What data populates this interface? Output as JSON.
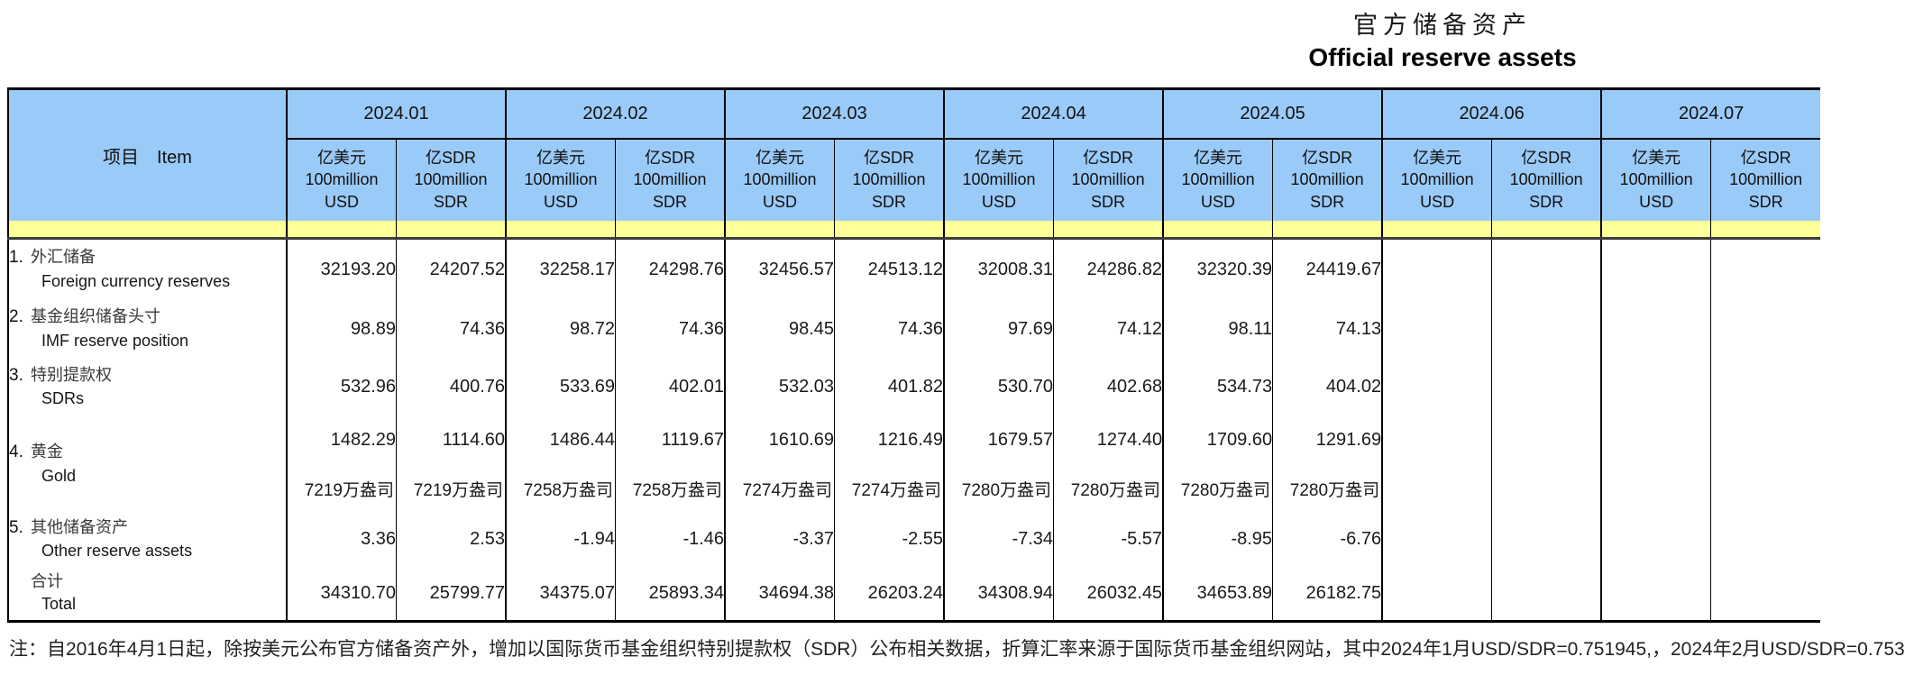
{
  "title": {
    "zh": "官方储备资产",
    "en": "Official reserve assets"
  },
  "table": {
    "item_header": "项目　Item",
    "months": [
      "2024.01",
      "2024.02",
      "2024.03",
      "2024.04",
      "2024.05",
      "2024.06",
      "2024.07"
    ],
    "unit_usd": {
      "zh": "亿美元",
      "l2": "100million",
      "l3": "USD"
    },
    "unit_sdr": {
      "zh": "亿SDR",
      "l2": "100million",
      "l3": "SDR"
    },
    "rows": [
      {
        "num": "1.",
        "zh": "外汇储备",
        "en": "Foreign currency reserves",
        "values": [
          "32193.20",
          "24207.52",
          "32258.17",
          "24298.76",
          "32456.57",
          "24513.12",
          "32008.31",
          "24286.82",
          "32320.39",
          "24419.67",
          "",
          "",
          "",
          ""
        ]
      },
      {
        "num": "2.",
        "zh": "基金组织储备头寸",
        "en": "IMF reserve position",
        "values": [
          "98.89",
          "74.36",
          "98.72",
          "74.36",
          "98.45",
          "74.36",
          "97.69",
          "74.12",
          "98.11",
          "74.13",
          "",
          "",
          "",
          ""
        ]
      },
      {
        "num": "3.",
        "zh": "特别提款权",
        "en": "SDRs",
        "values": [
          "532.96",
          "400.76",
          "533.69",
          "402.01",
          "532.03",
          "401.82",
          "530.70",
          "402.68",
          "534.73",
          "404.02",
          "",
          "",
          "",
          ""
        ]
      },
      {
        "num": "4.",
        "zh": "黄金",
        "en": "Gold",
        "values": [
          "1482.29",
          "1114.60",
          "1486.44",
          "1119.67",
          "1610.69",
          "1216.49",
          "1679.57",
          "1274.40",
          "1709.60",
          "1291.69",
          "",
          "",
          "",
          ""
        ]
      },
      {
        "num": "",
        "zh": "",
        "en": "",
        "values": [
          "7219万盎司",
          "7219万盎司",
          "7258万盎司",
          "7258万盎司",
          "7274万盎司",
          "7274万盎司",
          "7280万盎司",
          "7280万盎司",
          "7280万盎司",
          "7280万盎司",
          "",
          "",
          "",
          ""
        ]
      },
      {
        "num": "5.",
        "zh": "其他储备资产",
        "en": "Other reserve assets",
        "values": [
          "3.36",
          "2.53",
          "-1.94",
          "-1.46",
          "-3.37",
          "-2.55",
          "-7.34",
          "-5.57",
          "-8.95",
          "-6.76",
          "",
          "",
          "",
          ""
        ]
      },
      {
        "num": "",
        "zh": "合计",
        "en": "Total",
        "values": [
          "34310.70",
          "25799.77",
          "34375.07",
          "25893.34",
          "34694.38",
          "26203.24",
          "34308.94",
          "26032.45",
          "34653.89",
          "26182.75",
          "",
          "",
          "",
          ""
        ]
      }
    ],
    "note": "注：自2016年4月1日起，除按美元公布官方储备资产外，增加以国际货币基金组织特别提款权（SDR）公布相关数据，折算汇率来源于国际货币基金组织网站，其中2024年1月USD/SDR=0.751945,，2024年2月USD/SDR=0.753"
  },
  "colors": {
    "header_blue": "#9ACAF8",
    "band_yellow": "#FFFF99",
    "border": "#000000"
  }
}
